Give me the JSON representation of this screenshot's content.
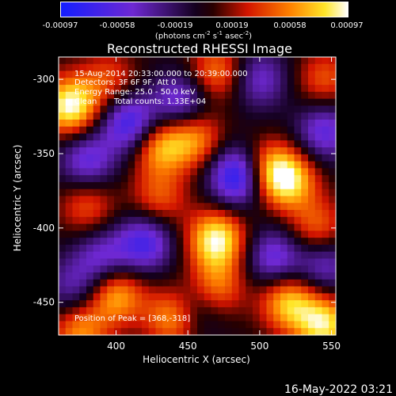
{
  "chart_data": {
    "type": "heatmap",
    "title": "Reconstructed RHESSI Image",
    "xlabel": "Heliocentric X (arcsec)",
    "ylabel": "Heliocentric Y (arcsec)",
    "xlim": [
      360,
      553
    ],
    "ylim": [
      -472,
      -285
    ],
    "x_ticks": [
      400,
      450,
      500,
      550
    ],
    "y_ticks": [
      -300,
      -350,
      -400,
      -450
    ],
    "colorbar": {
      "ticks": [
        "-0.00097",
        "-0.00058",
        "-0.00019",
        "0.00019",
        "0.00058",
        "0.00097"
      ],
      "range": [
        -0.00097,
        0.00097
      ],
      "units_label": "(photons cm",
      "units_exp1": "-2",
      "units_mid": " s",
      "units_exp2": "-1",
      "units_mid2": " asec",
      "units_exp3": "-2",
      "units_end": ")"
    },
    "annotations": {
      "time_range": "15-Aug-2014 20:33:00.000 to 20:39:00.000",
      "detectors": "Detectors: 3F 6F 9F, Att 0",
      "energy_range": "Energy Range: 25.0 - 50.0 keV",
      "method": "Clean",
      "total_counts": "Total counts: 1.33E+04",
      "peak_position": "Position of Peak = [368,-318]"
    },
    "blobs": [
      {
        "x": 368,
        "y": -318,
        "v": 0.00097
      },
      {
        "x": 395,
        "y": -300,
        "v": 0.0004
      },
      {
        "x": 470,
        "y": -295,
        "v": 0.00055
      },
      {
        "x": 545,
        "y": -300,
        "v": 0.00045
      },
      {
        "x": 430,
        "y": -345,
        "v": 0.0007
      },
      {
        "x": 455,
        "y": -340,
        "v": 0.0006
      },
      {
        "x": 505,
        "y": -360,
        "v": 0.0006
      },
      {
        "x": 520,
        "y": -368,
        "v": 0.0008
      },
      {
        "x": 380,
        "y": -385,
        "v": 0.00045
      },
      {
        "x": 430,
        "y": -380,
        "v": 0.00045
      },
      {
        "x": 470,
        "y": -408,
        "v": 0.00095
      },
      {
        "x": 540,
        "y": -400,
        "v": 0.0005
      },
      {
        "x": 400,
        "y": -445,
        "v": 0.0007
      },
      {
        "x": 440,
        "y": -460,
        "v": 0.0007
      },
      {
        "x": 470,
        "y": -440,
        "v": 0.00055
      },
      {
        "x": 520,
        "y": -450,
        "v": 0.00075
      },
      {
        "x": 545,
        "y": -465,
        "v": 0.00085
      },
      {
        "x": 375,
        "y": -470,
        "v": 0.0006
      },
      {
        "x": 410,
        "y": -330,
        "v": -0.0008
      },
      {
        "x": 445,
        "y": -315,
        "v": -0.0006
      },
      {
        "x": 485,
        "y": -365,
        "v": -0.00097
      },
      {
        "x": 380,
        "y": -355,
        "v": -0.0006
      },
      {
        "x": 545,
        "y": -335,
        "v": -0.0006
      },
      {
        "x": 420,
        "y": -410,
        "v": -0.0007
      },
      {
        "x": 390,
        "y": -420,
        "v": -0.0005
      },
      {
        "x": 510,
        "y": -420,
        "v": -0.0006
      },
      {
        "x": 455,
        "y": -455,
        "v": -0.0004
      },
      {
        "x": 545,
        "y": -425,
        "v": -0.0005
      },
      {
        "x": 500,
        "y": -300,
        "v": -0.0005
      },
      {
        "x": 370,
        "y": -440,
        "v": -0.0004
      }
    ]
  },
  "footer": {
    "date": "16-May-2022 03:21"
  }
}
